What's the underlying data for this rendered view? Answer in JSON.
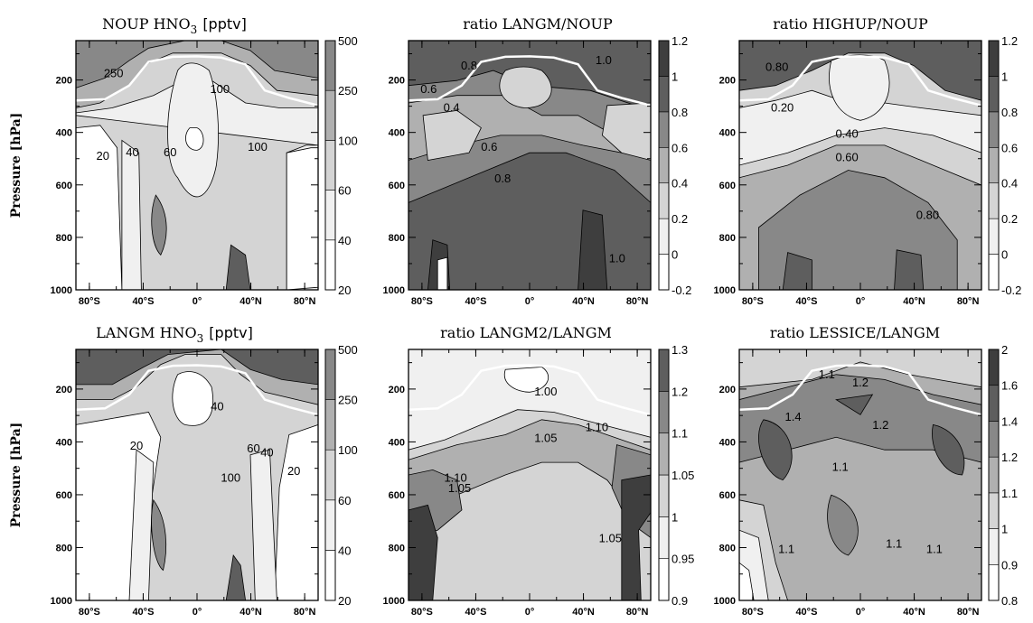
{
  "chart_data": [
    {
      "type": "heatmap",
      "title": "NOUP HNO",
      "title_sub": "3",
      "title_unit": "[pptv]",
      "ylabel": "Pressure [hPa]",
      "x_ticks": [
        "80°S",
        "40°S",
        "0°",
        "40°N",
        "80°N"
      ],
      "x_values": [
        -80,
        -40,
        0,
        40,
        80
      ],
      "xlim": [
        -90,
        90
      ],
      "y_ticks": [
        200,
        400,
        600,
        800,
        1000
      ],
      "ylim": [
        50,
        1000
      ],
      "colorbar_levels": [
        20,
        40,
        60,
        100,
        250,
        500
      ],
      "contour_labels": [
        {
          "text": "250",
          "x": -62,
          "y": 190
        },
        {
          "text": "100",
          "x": 17,
          "y": 250
        },
        {
          "text": "100",
          "x": 45,
          "y": 470
        },
        {
          "text": "60",
          "x": -20,
          "y": 490
        },
        {
          "text": "40",
          "x": -48,
          "y": 490
        },
        {
          "text": "20",
          "x": -70,
          "y": 505
        }
      ]
    },
    {
      "type": "heatmap",
      "title": "ratio LANGM/NOUP",
      "x_ticks": [
        "80°S",
        "40°S",
        "0°",
        "40°N",
        "80°N"
      ],
      "x_values": [
        -80,
        -40,
        0,
        40,
        80
      ],
      "xlim": [
        -90,
        90
      ],
      "y_ticks": [
        200,
        400,
        600,
        800,
        1000
      ],
      "ylim": [
        50,
        1000
      ],
      "colorbar_levels": [
        -0.2,
        0,
        0.2,
        0.4,
        0.6,
        0.8,
        1,
        1.2
      ],
      "contour_labels": [
        {
          "text": "0.8",
          "x": -45,
          "y": 160
        },
        {
          "text": "1.0",
          "x": 55,
          "y": 140
        },
        {
          "text": "0.6",
          "x": -75,
          "y": 250
        },
        {
          "text": "0.4",
          "x": -58,
          "y": 320
        },
        {
          "text": "0.6",
          "x": -30,
          "y": 470
        },
        {
          "text": "0.8",
          "x": -20,
          "y": 590
        },
        {
          "text": "1.0",
          "x": 65,
          "y": 895
        }
      ]
    },
    {
      "type": "heatmap",
      "title": "ratio HIGHUP/NOUP",
      "x_ticks": [
        "80°S",
        "40°S",
        "0°",
        "40°N",
        "80°N"
      ],
      "x_values": [
        -80,
        -40,
        0,
        40,
        80
      ],
      "xlim": [
        -90,
        90
      ],
      "y_ticks": [
        200,
        400,
        600,
        800,
        1000
      ],
      "ylim": [
        50,
        1000
      ],
      "colorbar_levels": [
        -0.2,
        0,
        0.2,
        0.4,
        0.6,
        0.8,
        1,
        1.2
      ],
      "contour_labels": [
        {
          "text": "0.80",
          "x": -62,
          "y": 165
        },
        {
          "text": "0.20",
          "x": -58,
          "y": 320
        },
        {
          "text": "0.40",
          "x": -10,
          "y": 420
        },
        {
          "text": "0.60",
          "x": -10,
          "y": 510
        },
        {
          "text": "0.80",
          "x": 50,
          "y": 730
        }
      ]
    },
    {
      "type": "heatmap",
      "title": "LANGM HNO",
      "title_sub": "3",
      "title_unit": "[pptv]",
      "ylabel": "Pressure [hPa]",
      "x_ticks": [
        "80°S",
        "40°S",
        "0°",
        "40°N",
        "80°N"
      ],
      "x_values": [
        -80,
        -40,
        0,
        40,
        80
      ],
      "xlim": [
        -90,
        90
      ],
      "y_ticks": [
        200,
        400,
        600,
        800,
        1000
      ],
      "ylim": [
        50,
        1000
      ],
      "colorbar_levels": [
        20,
        40,
        60,
        100,
        250,
        500
      ],
      "contour_labels": [
        {
          "text": "40",
          "x": 15,
          "y": 280
        },
        {
          "text": "20",
          "x": -45,
          "y": 430
        },
        {
          "text": "60",
          "x": 42,
          "y": 440
        },
        {
          "text": "40",
          "x": 52,
          "y": 455
        },
        {
          "text": "20",
          "x": 72,
          "y": 525
        },
        {
          "text": "100",
          "x": 25,
          "y": 550
        }
      ]
    },
    {
      "type": "heatmap",
      "title": "ratio LANGM2/LANGM",
      "x_ticks": [
        "80°S",
        "40°S",
        "0°",
        "40°N",
        "80°N"
      ],
      "x_values": [
        -80,
        -40,
        0,
        40,
        80
      ],
      "xlim": [
        -90,
        90
      ],
      "y_ticks": [
        200,
        400,
        600,
        800,
        1000
      ],
      "ylim": [
        50,
        1000
      ],
      "colorbar_levels": [
        0.9,
        0.95,
        1,
        1.05,
        1.1,
        1.2,
        1.3
      ],
      "contour_labels": [
        {
          "text": "1.00",
          "x": 12,
          "y": 225
        },
        {
          "text": "1.05",
          "x": 12,
          "y": 400
        },
        {
          "text": "1.10",
          "x": 50,
          "y": 360
        },
        {
          "text": "1.10",
          "x": -55,
          "y": 550
        },
        {
          "text": "1.05",
          "x": -52,
          "y": 590
        },
        {
          "text": "1.05",
          "x": 60,
          "y": 780
        }
      ]
    },
    {
      "type": "heatmap",
      "title": "ratio LESSICE/LANGM",
      "x_ticks": [
        "80°S",
        "40°S",
        "0°",
        "40°N",
        "80°N"
      ],
      "x_values": [
        -80,
        -40,
        0,
        40,
        80
      ],
      "xlim": [
        -90,
        90
      ],
      "y_ticks": [
        200,
        400,
        600,
        800,
        1000
      ],
      "ylim": [
        50,
        1000
      ],
      "colorbar_levels": [
        0.8,
        0.9,
        1,
        1.1,
        1.2,
        1.4,
        1.6,
        2
      ],
      "contour_labels": [
        {
          "text": "1.1",
          "x": -25,
          "y": 160
        },
        {
          "text": "1.2",
          "x": 0,
          "y": 190
        },
        {
          "text": "1.4",
          "x": -50,
          "y": 320
        },
        {
          "text": "1.2",
          "x": 15,
          "y": 350
        },
        {
          "text": "1.1",
          "x": -15,
          "y": 510
        },
        {
          "text": "1.1",
          "x": -55,
          "y": 820
        },
        {
          "text": "1.1",
          "x": 25,
          "y": 800
        },
        {
          "text": "1.1",
          "x": 55,
          "y": 820
        }
      ]
    }
  ]
}
